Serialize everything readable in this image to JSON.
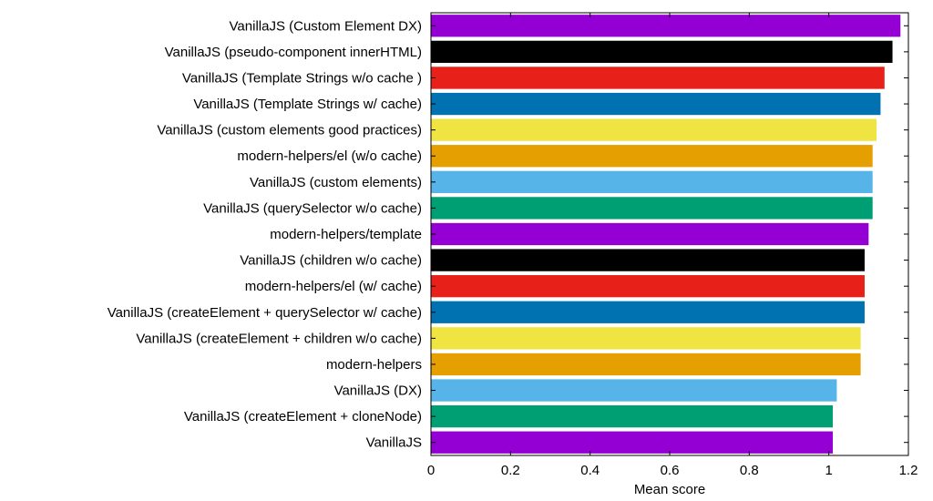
{
  "chart_data": {
    "type": "bar",
    "orientation": "horizontal",
    "title": "",
    "xlabel": "Mean score",
    "ylabel": "",
    "xlim": [
      0,
      1.2
    ],
    "xticks": [
      0,
      0.2,
      0.4,
      0.6,
      0.8,
      1,
      1.2
    ],
    "xtick_labels": [
      "0",
      "0.2",
      "0.4",
      "0.6",
      "0.8",
      "1",
      "1.2"
    ],
    "grid": false,
    "legend": "none",
    "categories": [
      "VanillaJS (Custom Element DX)",
      "VanillaJS (pseudo-component innerHTML)",
      "VanillaJS (Template Strings w/o cache )",
      "VanillaJS (Template Strings w/ cache)",
      "VanillaJS (custom elements  good practices)",
      "modern-helpers/el (w/o cache)",
      "VanillaJS (custom elements)",
      "VanillaJS (querySelector w/o cache)",
      "modern-helpers/template",
      "VanillaJS (children w/o cache)",
      "modern-helpers/el (w/ cache)",
      "VanillaJS (createElement + querySelector w/ cache)",
      "VanillaJS (createElement + children w/o cache)",
      "modern-helpers",
      "VanillaJS (DX)",
      "VanillaJS (createElement + cloneNode)",
      "VanillaJS"
    ],
    "values": [
      1.18,
      1.16,
      1.14,
      1.13,
      1.12,
      1.11,
      1.11,
      1.11,
      1.1,
      1.09,
      1.09,
      1.09,
      1.08,
      1.08,
      1.02,
      1.01,
      1.01
    ],
    "colors": [
      "#9400d3",
      "#000000",
      "#e8201a",
      "#0072b2",
      "#f0e442",
      "#e69f00",
      "#56b4e9",
      "#009e73",
      "#9400d3",
      "#000000",
      "#e8201a",
      "#0072b2",
      "#f0e442",
      "#e69f00",
      "#56b4e9",
      "#009e73",
      "#9400d3"
    ]
  }
}
